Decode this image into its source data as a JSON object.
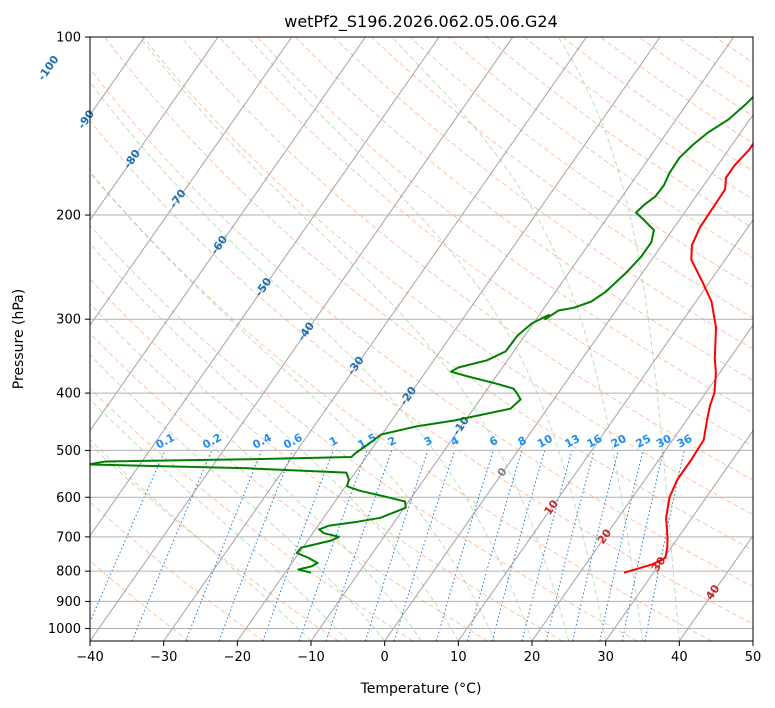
{
  "chart_data": {
    "type": "line",
    "title": "wetPf2_S196.2026.062.05.06.G24",
    "xlabel": "Temperature (°C)",
    "ylabel": "Pressure (hPa)",
    "xlim": [
      -40,
      50
    ],
    "ylim": [
      1050,
      100
    ],
    "y_scale": "log",
    "grid": true,
    "x_ticks": [
      -40,
      -30,
      -20,
      -10,
      0,
      10,
      20,
      30,
      40,
      50
    ],
    "x_tick_labels": [
      "−40",
      "−30",
      "−20",
      "−10",
      "0",
      "10",
      "20",
      "30",
      "40",
      "50"
    ],
    "y_ticks": [
      1000,
      900,
      800,
      700,
      600,
      500,
      400,
      300,
      200,
      100
    ],
    "y_tick_labels": [
      "1000",
      "900",
      "800",
      "700",
      "600",
      "500",
      "400",
      "300",
      "200",
      "100"
    ],
    "series": [
      {
        "color": "#ff0000",
        "role": "temperature",
        "points": [
          [
            26,
            805
          ],
          [
            29,
            780
          ],
          [
            30.2,
            760
          ],
          [
            29.5,
            730
          ],
          [
            28.5,
            700
          ],
          [
            26.5,
            650
          ],
          [
            25,
            600
          ],
          [
            24.4,
            560
          ],
          [
            24.4,
            520
          ],
          [
            24.2,
            480
          ],
          [
            22.6,
            440
          ],
          [
            21.8,
            420
          ],
          [
            21.2,
            400
          ],
          [
            19.5,
            370
          ],
          [
            18,
            350
          ],
          [
            15.2,
            310
          ],
          [
            12.1,
            280
          ],
          [
            9.1,
            260
          ],
          [
            5.4,
            238
          ],
          [
            4.1,
            225
          ],
          [
            3.5,
            210
          ],
          [
            3.4,
            196
          ],
          [
            3.3,
            181
          ],
          [
            2.3,
            173
          ],
          [
            2.3,
            165
          ],
          [
            2.8,
            155
          ],
          [
            2.7,
            140
          ],
          [
            1.9,
            128
          ],
          [
            1.5,
            120
          ],
          [
            1.3,
            114
          ],
          [
            2.8,
            109
          ],
          [
            5,
            105
          ],
          [
            5.8,
            100
          ]
        ]
      },
      {
        "color": "#008000",
        "role": "dewpoint",
        "points": [
          [
            -16.5,
            805
          ],
          [
            -18.5,
            795
          ],
          [
            -17,
            785
          ],
          [
            -16.5,
            775
          ],
          [
            -18.2,
            760
          ],
          [
            -20.3,
            745
          ],
          [
            -20.2,
            730
          ],
          [
            -16.8,
            710
          ],
          [
            -16.1,
            700
          ],
          [
            -18.5,
            690
          ],
          [
            -19.5,
            680
          ],
          [
            -18.5,
            670
          ],
          [
            -15,
            660
          ],
          [
            -12.3,
            650
          ],
          [
            -9.8,
            625
          ],
          [
            -10.5,
            610
          ],
          [
            -13.2,
            600
          ],
          [
            -17.7,
            585
          ],
          [
            -19.8,
            575
          ],
          [
            -20.2,
            560
          ],
          [
            -21.2,
            545
          ],
          [
            -35,
            536
          ],
          [
            -57,
            528
          ],
          [
            -55,
            522
          ],
          [
            -34,
            517
          ],
          [
            -22,
            513
          ],
          [
            -21.8,
            505
          ],
          [
            -21,
            490
          ],
          [
            -20.1,
            470
          ],
          [
            -16,
            455
          ],
          [
            -11.5,
            445
          ],
          [
            -5,
            425
          ],
          [
            -4.5,
            410
          ],
          [
            -5.6,
            400
          ],
          [
            -6.5,
            393
          ],
          [
            -9.5,
            385
          ],
          [
            -13.8,
            375
          ],
          [
            -16.6,
            368
          ],
          [
            -16,
            362
          ],
          [
            -12.8,
            352
          ],
          [
            -11.1,
            340
          ],
          [
            -11,
            320
          ],
          [
            -10.2,
            305
          ],
          [
            -8.7,
            295
          ],
          [
            -8.8,
            300
          ],
          [
            -7.8,
            290
          ],
          [
            -6,
            287
          ],
          [
            -4.2,
            280
          ],
          [
            -3.2,
            270
          ],
          [
            -2.2,
            250
          ],
          [
            -1.7,
            235
          ],
          [
            -1.7,
            222
          ],
          [
            -2.5,
            212
          ],
          [
            -4.8,
            204
          ],
          [
            -6.6,
            198
          ],
          [
            -6.2,
            192
          ],
          [
            -5.5,
            186
          ],
          [
            -5.4,
            178
          ],
          [
            -5.8,
            170
          ],
          [
            -5.9,
            160
          ],
          [
            -5.3,
            152
          ],
          [
            -4.4,
            145
          ],
          [
            -2.9,
            138
          ],
          [
            -2,
            130
          ],
          [
            -1.3,
            122
          ],
          [
            -1.2,
            117
          ],
          [
            -2.4,
            112
          ],
          [
            -4.3,
            107
          ],
          [
            -4.6,
            103
          ],
          [
            -4.4,
            100
          ]
        ]
      }
    ],
    "isotherm_labels": [
      "-100",
      "-90",
      "-80",
      "-70",
      "-60",
      "-50",
      "-40",
      "-30",
      "-20",
      "-10",
      "0",
      "10",
      "20",
      "30",
      "40"
    ],
    "mixing_ratio_labels": [
      "0.1",
      "0.2",
      "0.4",
      "0.6",
      "1",
      "1.5",
      "2",
      "3",
      "4",
      "6",
      "8",
      "10",
      "13",
      "16",
      "20",
      "25",
      "30",
      "36"
    ]
  }
}
